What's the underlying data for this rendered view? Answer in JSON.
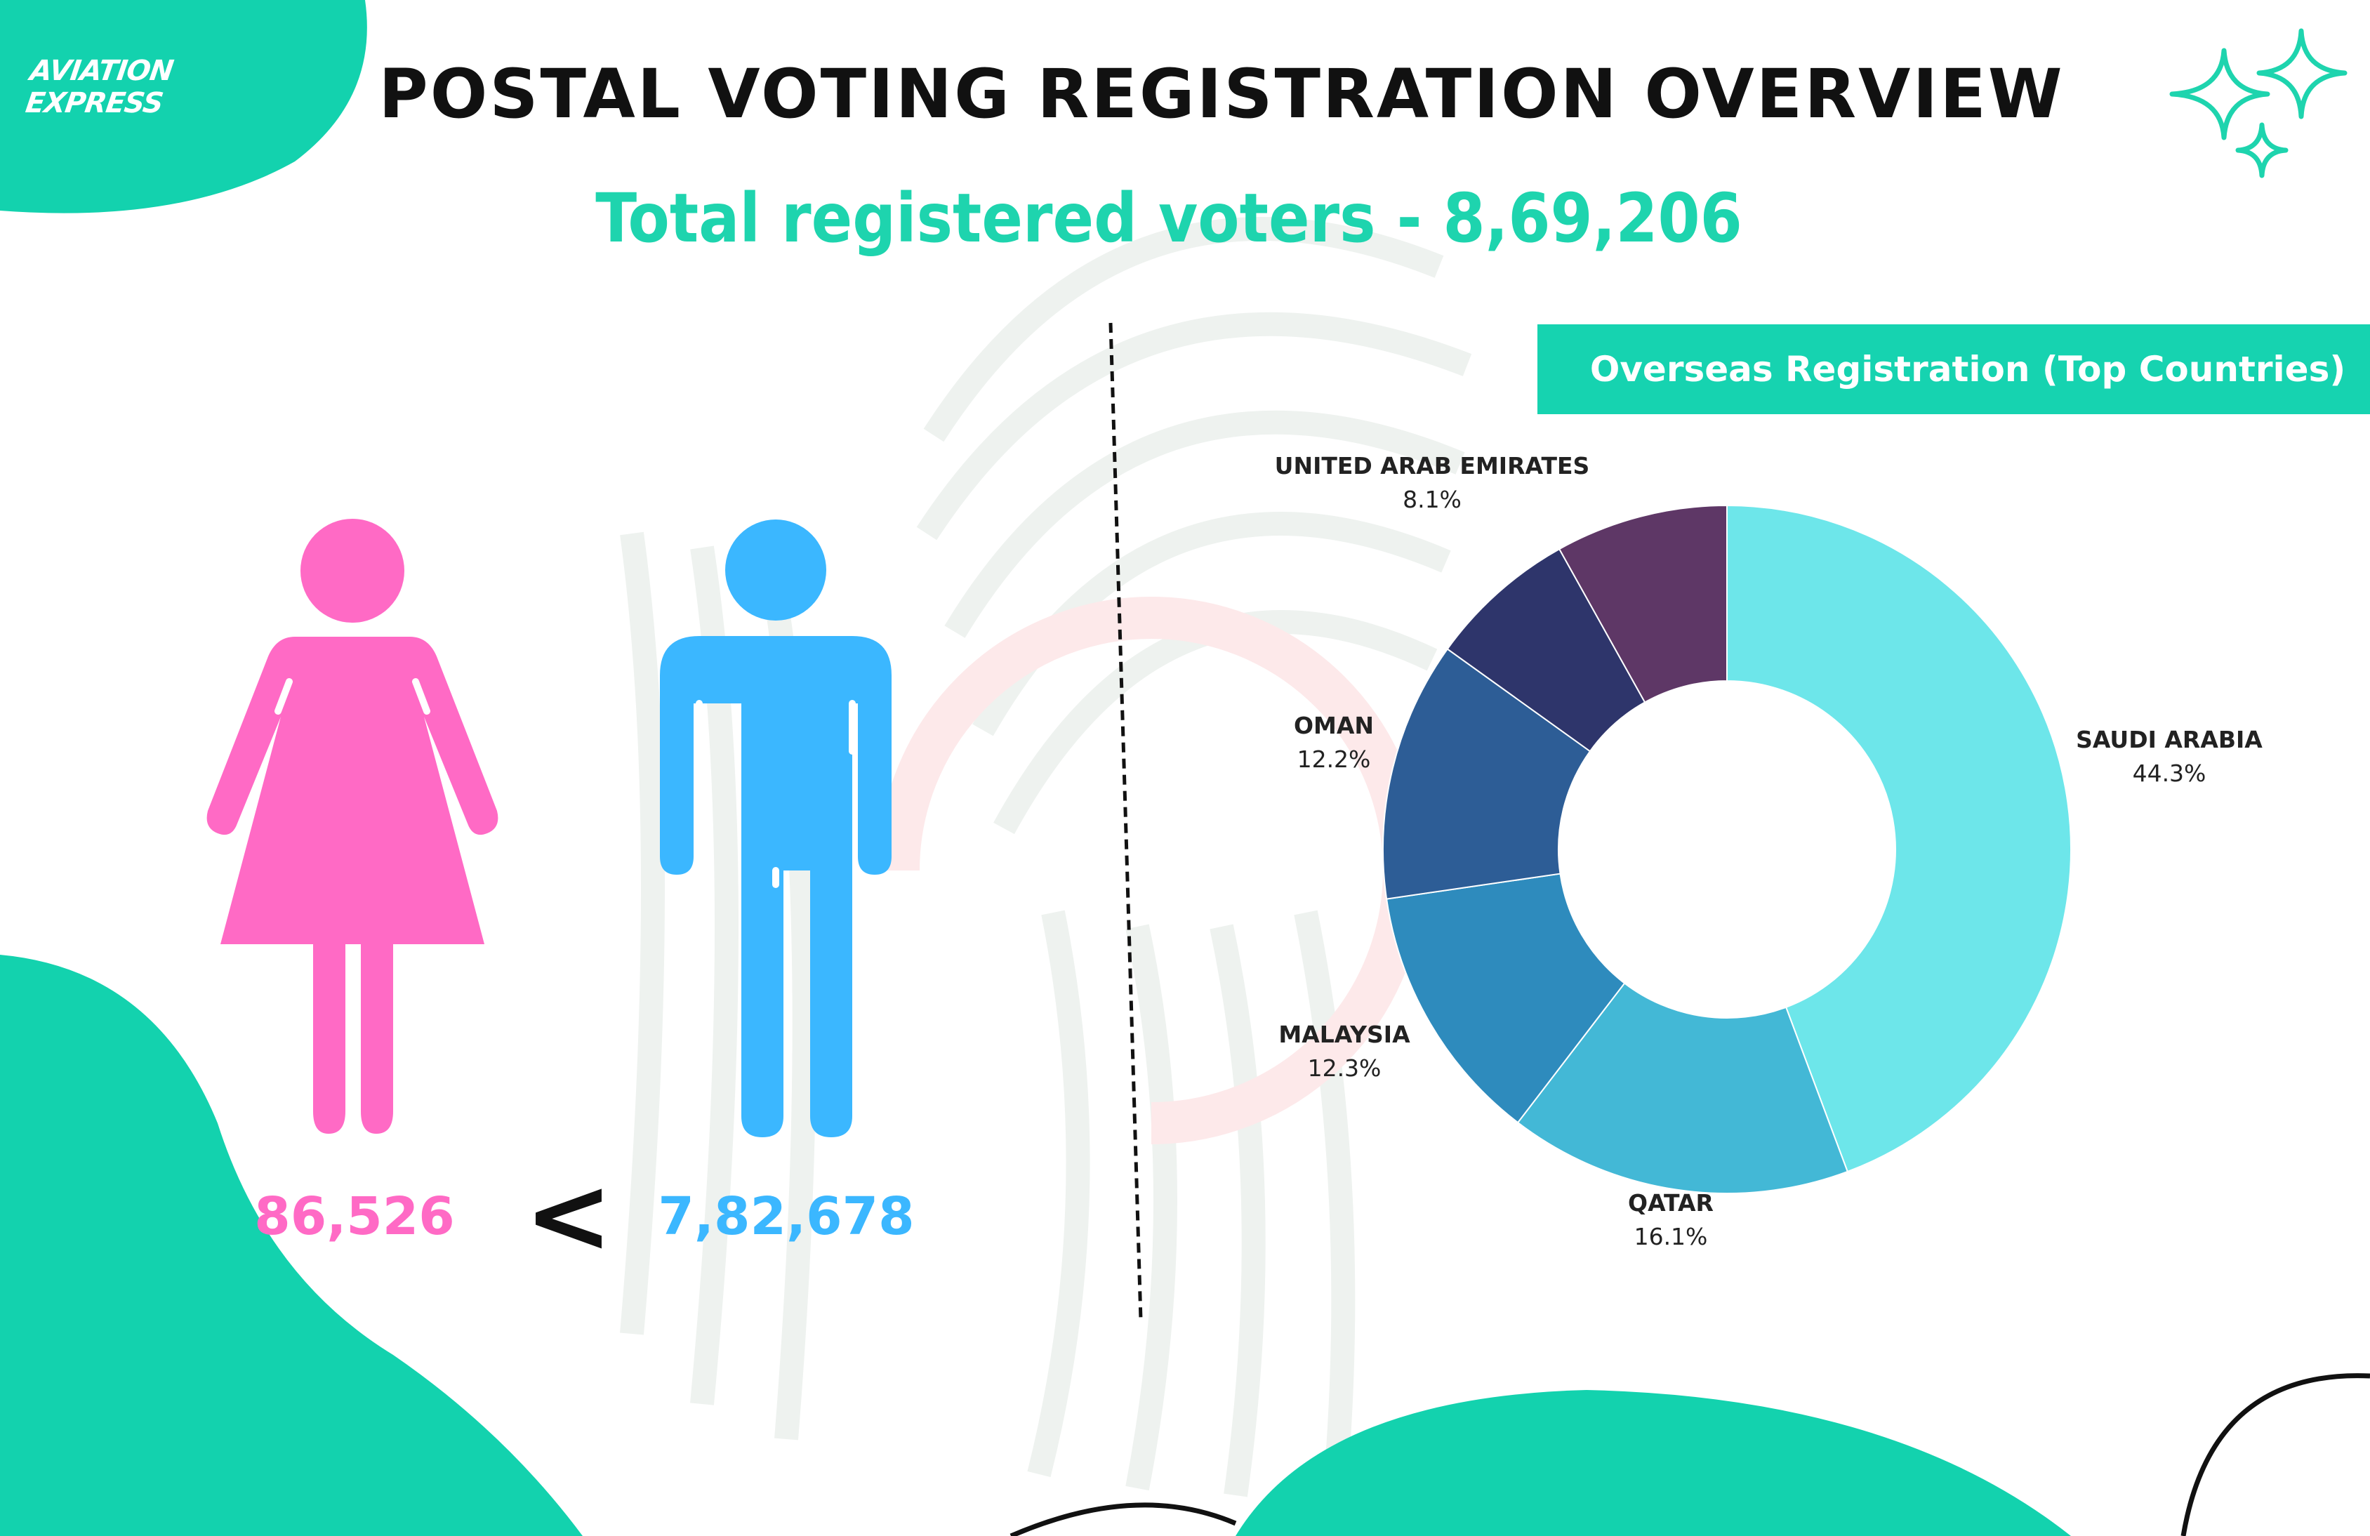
{
  "brand": {
    "logo_text": "AVIATION EXPRESS"
  },
  "header": {
    "title": "POSTAL VOTING REGISTRATION OVERVIEW",
    "subtitle": "Total registered voters - 8,69,206"
  },
  "gender": {
    "female_count": "86,526",
    "comparison_symbol": "<",
    "male_count": "7,82,678",
    "female_color": "#ff6ac5",
    "male_color": "#3bb7ff",
    "female_icon": "female-person-icon",
    "male_icon": "male-person-icon"
  },
  "colors": {
    "accent": "#16d3b0",
    "title": "#111111"
  },
  "chart_data": {
    "type": "pie",
    "title": "Overseas Registration (Top Countries)",
    "donut": true,
    "slices": [
      {
        "label": "SAUDI ARABIA",
        "value": 44.3,
        "value_label": "44.3%",
        "color": "#6de6ea"
      },
      {
        "label": "QATAR",
        "value": 16.1,
        "value_label": "16.1%",
        "color": "#43b8d6"
      },
      {
        "label": "MALAYSIA",
        "value": 12.3,
        "value_label": "12.3%",
        "color": "#2e8bbd"
      },
      {
        "label": "OMAN",
        "value": 12.2,
        "value_label": "12.2%",
        "color": "#2d5d96"
      },
      {
        "label": "",
        "value": 7.0,
        "value_label": "",
        "color": "#2e356b"
      },
      {
        "label": "UNITED ARAB EMIRATES",
        "value": 8.1,
        "value_label": "8.1%",
        "color": "#5e3766"
      }
    ]
  }
}
